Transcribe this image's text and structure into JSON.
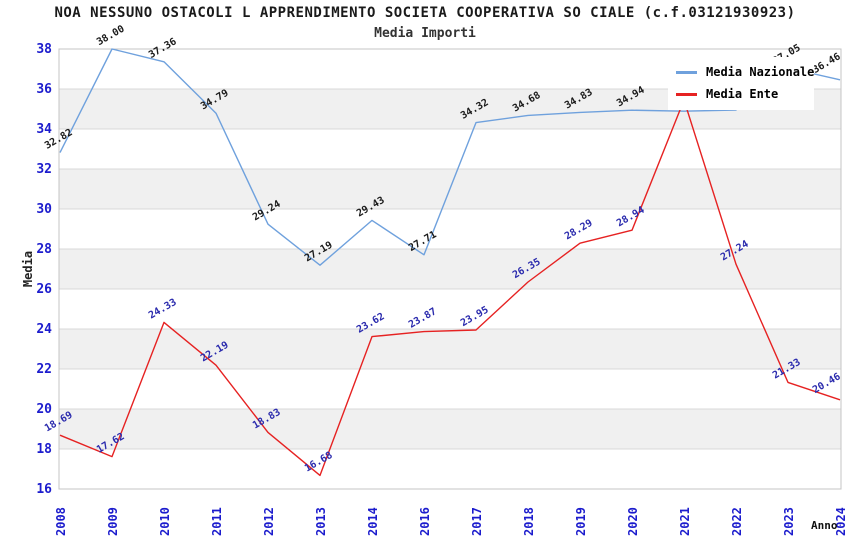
{
  "header": {
    "window_title": "Media Importi chart"
  },
  "colors": {
    "background": "#ffffff",
    "band_gray": "#f0f0f0",
    "gridline": "#d9d9d9",
    "plot_border": "#c4c4c4",
    "tick_label_blue": "#1c1ccd",
    "series_nazionale_line": "#6fa1dd",
    "series_ente_line": "#e62222",
    "label_nazionale_text": "#1a1a1a",
    "label_ente_text": "#2a2aad",
    "legend_background": "#ffffff"
  },
  "legend": {
    "position": "top-right",
    "items": [
      {
        "label": "Media Nazionale",
        "color": "#6fa1dd"
      },
      {
        "label": "Media Ente",
        "color": "#e62222"
      }
    ]
  },
  "chart_data": {
    "type": "line",
    "title": "NOA NESSUNO OSTACOLI L APPRENDIMENTO SOCIETA COOPERATIVA SO CIALE (c.f.03121930923)",
    "subtitle": "Media Importi",
    "xlabel": "Anno",
    "ylabel": "Media",
    "ylim": [
      16,
      38
    ],
    "ytick_step": 2,
    "grid": "horizontal gridlines with alternating gray bands every 2 units",
    "legend_position": "top-right inside plot",
    "categories": [
      "2008",
      "2009",
      "2010",
      "2011",
      "2012",
      "2013",
      "2014",
      "2016",
      "2017",
      "2018",
      "2019",
      "2020",
      "2021",
      "2022",
      "2023",
      "2024"
    ],
    "series": [
      {
        "name": "Media Nazionale",
        "color": "#6fa1dd",
        "label_color": "#1a1a1a",
        "values": [
          32.82,
          38.0,
          37.36,
          34.79,
          29.24,
          27.19,
          29.43,
          27.71,
          34.32,
          34.68,
          34.83,
          34.94,
          34.89,
          34.95,
          37.05,
          36.46
        ],
        "labels_hidden_by_legend": [
          12,
          13
        ]
      },
      {
        "name": "Media Ente",
        "color": "#e62222",
        "label_color": "#2a2aad",
        "values": [
          18.69,
          17.62,
          24.33,
          22.19,
          18.83,
          16.68,
          23.62,
          23.87,
          23.95,
          26.35,
          28.29,
          28.94,
          35.45,
          27.24,
          21.33,
          20.46
        ],
        "labels_hidden_by_legend": [
          12
        ]
      }
    ]
  }
}
